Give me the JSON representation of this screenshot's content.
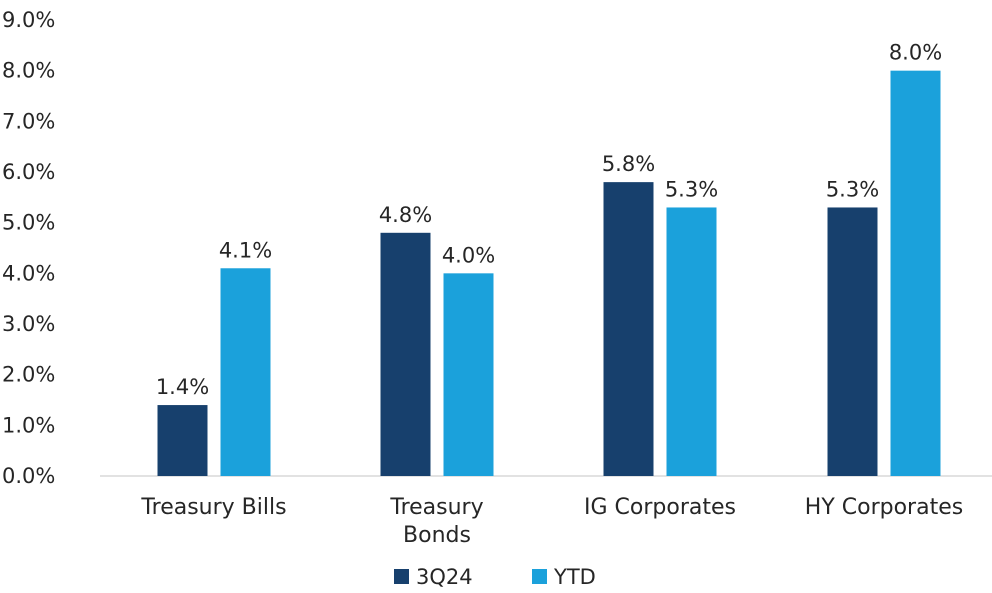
{
  "chart_data": {
    "type": "bar",
    "categories": [
      "Treasury Bills",
      "Treasury Bonds",
      "IG Corporates",
      "HY Corporates"
    ],
    "category_lines": [
      [
        "Treasury Bills"
      ],
      [
        "Treasury",
        "Bonds"
      ],
      [
        "IG Corporates"
      ],
      [
        "HY Corporates"
      ]
    ],
    "series": [
      {
        "name": "3Q24",
        "values": [
          1.4,
          4.8,
          5.8,
          5.3
        ],
        "labels": [
          "1.4%",
          "4.8%",
          "5.8%",
          "5.3%"
        ],
        "color": "#17406D"
      },
      {
        "name": "YTD",
        "values": [
          4.1,
          4.0,
          5.3,
          8.0
        ],
        "labels": [
          "4.1%",
          "4.0%",
          "5.3%",
          "8.0%"
        ],
        "color": "#1BA1DB"
      }
    ],
    "yticks": [
      "0.0%",
      "1.0%",
      "2.0%",
      "3.0%",
      "4.0%",
      "5.0%",
      "6.0%",
      "7.0%",
      "8.0%",
      "9.0%"
    ],
    "ylim": [
      0,
      9
    ],
    "grid": false,
    "legend_position": "bottom",
    "title": "",
    "xlabel": "",
    "ylabel": ""
  }
}
